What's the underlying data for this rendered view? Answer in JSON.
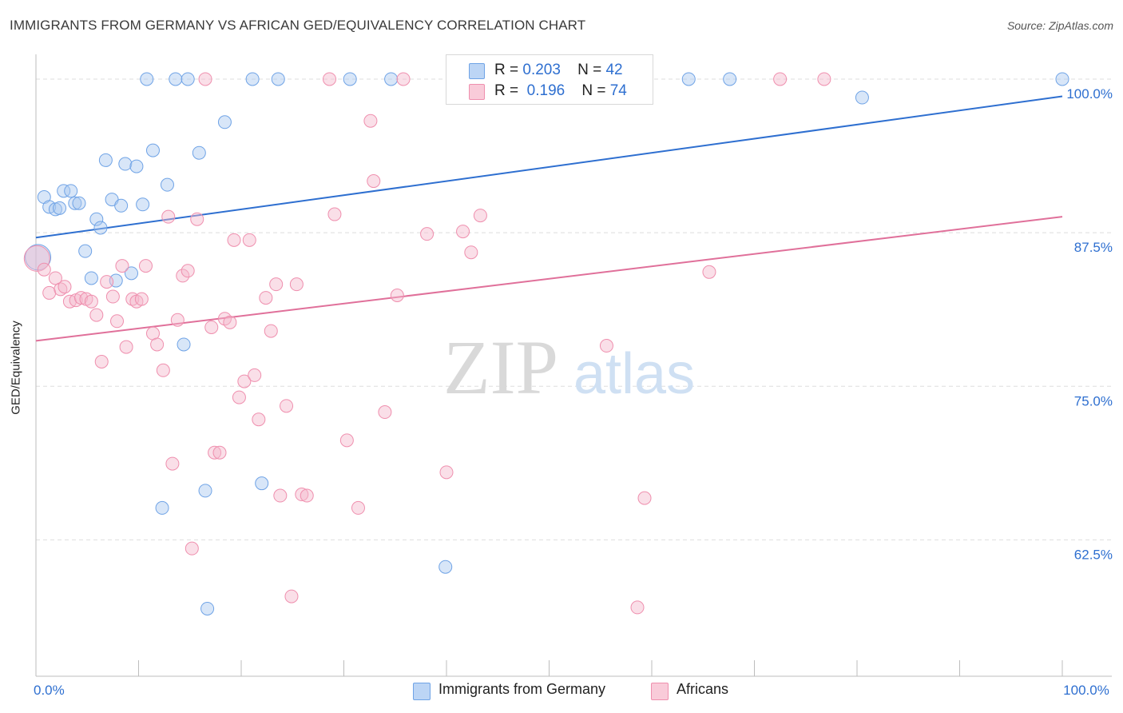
{
  "header": {
    "title": "IMMIGRANTS FROM GERMANY VS AFRICAN GED/EQUIVALENCY CORRELATION CHART",
    "source": "Source: ZipAtlas.com"
  },
  "watermark": {
    "zip": "ZIP",
    "atlas": "atlas"
  },
  "legend": {
    "rows": [
      {
        "r_label": "R =",
        "r_value": "0.203",
        "n_label": "N =",
        "n_value": "42",
        "color": "#a8c8f0"
      },
      {
        "r_label": "R =",
        "r_value": "0.196",
        "n_label": "N =",
        "n_value": "74",
        "color": "#f5b8cb"
      }
    ]
  },
  "bottom_legend": [
    {
      "label": "Immigrants from Germany",
      "color": "#a8c8f0"
    },
    {
      "label": "Africans",
      "color": "#f5b8cb"
    }
  ],
  "chart_data": {
    "type": "scatter",
    "title": "IMMIGRANTS FROM GERMANY VS AFRICAN GED/EQUIVALENCY CORRELATION CHART",
    "xlabel": "",
    "ylabel": "GED/Equivalency",
    "xlim": [
      0,
      100
    ],
    "ylim": [
      51.4,
      101.3
    ],
    "x_tick_labels": [
      {
        "value": 0,
        "label": "0.0%"
      },
      {
        "value": 100,
        "label": "100.0%"
      }
    ],
    "y_tick_labels": [
      {
        "value": 100,
        "label": "100.0%"
      },
      {
        "value": 87.5,
        "label": "87.5%"
      },
      {
        "value": 75,
        "label": "75.0%"
      },
      {
        "value": 62.5,
        "label": "62.5%"
      }
    ],
    "grid": true,
    "series": [
      {
        "name": "Immigrants from Germany",
        "color": "#6fa3e6",
        "fill": "#a8c8f0",
        "trend": {
          "x": [
            0,
            100
          ],
          "y": [
            87.1,
            98.6
          ],
          "color": "#2e6fd0"
        },
        "points": [
          [
            0.2,
            85.5
          ],
          [
            0.8,
            90.4
          ],
          [
            1.3,
            89.6
          ],
          [
            1.9,
            89.4
          ],
          [
            2.3,
            89.5
          ],
          [
            2.7,
            90.9
          ],
          [
            3.4,
            90.9
          ],
          [
            3.8,
            89.9
          ],
          [
            4.2,
            89.9
          ],
          [
            4.8,
            86.0
          ],
          [
            5.4,
            83.8
          ],
          [
            5.9,
            88.6
          ],
          [
            6.3,
            87.9
          ],
          [
            6.8,
            93.4
          ],
          [
            7.4,
            90.2
          ],
          [
            7.8,
            83.6
          ],
          [
            8.3,
            89.7
          ],
          [
            8.7,
            93.1
          ],
          [
            9.3,
            84.2
          ],
          [
            9.8,
            92.9
          ],
          [
            10.4,
            89.8
          ],
          [
            10.8,
            100.0
          ],
          [
            11.4,
            94.2
          ],
          [
            12.3,
            65.1
          ],
          [
            12.8,
            91.4
          ],
          [
            13.6,
            100.0
          ],
          [
            14.4,
            78.4
          ],
          [
            14.8,
            100.0
          ],
          [
            15.9,
            94.0
          ],
          [
            16.5,
            66.5
          ],
          [
            16.7,
            56.9
          ],
          [
            18.4,
            96.5
          ],
          [
            21.1,
            100.0
          ],
          [
            22.0,
            67.1
          ],
          [
            23.6,
            100.0
          ],
          [
            30.6,
            100.0
          ],
          [
            34.6,
            100.0
          ],
          [
            39.9,
            60.3
          ],
          [
            63.6,
            100.0
          ],
          [
            67.6,
            100.0
          ],
          [
            80.5,
            98.5
          ],
          [
            100.0,
            100.0
          ]
        ]
      },
      {
        "name": "Africans",
        "color": "#ef8fae",
        "fill": "#f5b8cb",
        "trend": {
          "x": [
            0,
            100
          ],
          "y": [
            78.7,
            88.8
          ],
          "color": "#e0709a"
        },
        "points": [
          [
            0.1,
            85.4
          ],
          [
            0.8,
            84.5
          ],
          [
            1.3,
            82.6
          ],
          [
            1.9,
            83.8
          ],
          [
            2.4,
            82.9
          ],
          [
            2.8,
            83.1
          ],
          [
            3.3,
            81.9
          ],
          [
            3.9,
            82.0
          ],
          [
            4.4,
            82.2
          ],
          [
            4.9,
            82.1
          ],
          [
            5.4,
            81.9
          ],
          [
            5.9,
            80.8
          ],
          [
            6.4,
            77.0
          ],
          [
            6.9,
            83.5
          ],
          [
            7.5,
            82.3
          ],
          [
            7.9,
            80.3
          ],
          [
            8.4,
            84.8
          ],
          [
            8.8,
            78.2
          ],
          [
            9.4,
            82.1
          ],
          [
            9.8,
            81.9
          ],
          [
            10.3,
            82.1
          ],
          [
            10.7,
            84.8
          ],
          [
            11.4,
            79.3
          ],
          [
            11.8,
            78.4
          ],
          [
            12.4,
            76.3
          ],
          [
            12.9,
            88.8
          ],
          [
            13.3,
            68.7
          ],
          [
            13.8,
            80.4
          ],
          [
            14.3,
            84.0
          ],
          [
            14.8,
            84.4
          ],
          [
            15.2,
            61.8
          ],
          [
            15.7,
            88.6
          ],
          [
            16.5,
            100.0
          ],
          [
            17.1,
            79.8
          ],
          [
            17.4,
            69.6
          ],
          [
            17.9,
            69.6
          ],
          [
            18.4,
            80.5
          ],
          [
            18.9,
            80.2
          ],
          [
            19.3,
            86.9
          ],
          [
            19.8,
            74.1
          ],
          [
            20.3,
            75.4
          ],
          [
            20.8,
            86.9
          ],
          [
            21.3,
            75.9
          ],
          [
            21.7,
            72.3
          ],
          [
            22.4,
            82.2
          ],
          [
            22.9,
            79.5
          ],
          [
            23.4,
            83.3
          ],
          [
            23.8,
            66.1
          ],
          [
            24.4,
            73.4
          ],
          [
            24.9,
            57.9
          ],
          [
            25.4,
            83.3
          ],
          [
            25.9,
            66.2
          ],
          [
            26.4,
            66.1
          ],
          [
            28.6,
            100.0
          ],
          [
            29.1,
            89.0
          ],
          [
            30.3,
            70.6
          ],
          [
            31.4,
            65.1
          ],
          [
            32.6,
            96.6
          ],
          [
            32.9,
            91.7
          ],
          [
            34.0,
            72.9
          ],
          [
            35.2,
            82.4
          ],
          [
            35.8,
            100.0
          ],
          [
            38.1,
            87.4
          ],
          [
            40.0,
            68.0
          ],
          [
            41.6,
            87.6
          ],
          [
            42.4,
            85.9
          ],
          [
            43.3,
            88.9
          ],
          [
            52.0,
            100.0
          ],
          [
            55.6,
            78.3
          ],
          [
            58.6,
            57.0
          ],
          [
            59.3,
            65.9
          ],
          [
            65.6,
            84.3
          ],
          [
            72.5,
            100.0
          ],
          [
            76.8,
            100.0
          ]
        ]
      }
    ]
  }
}
